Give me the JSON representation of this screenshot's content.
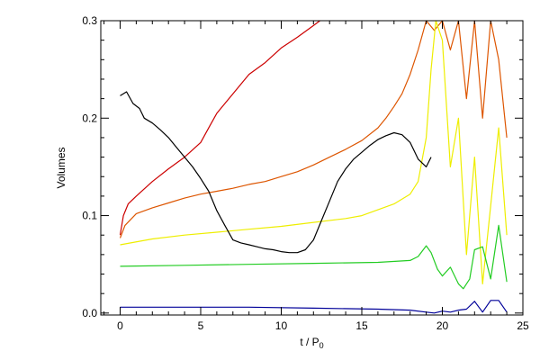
{
  "chart_data": {
    "type": "line",
    "xlabel": "t / P",
    "xlabel_subscript": "0",
    "ylabel": "Volumes",
    "xlim": [
      -1.2,
      25
    ],
    "ylim": [
      -0.002,
      0.3
    ],
    "xticks": [
      {
        "value": 0,
        "label": "0"
      },
      {
        "value": 5,
        "label": "5"
      },
      {
        "value": 10,
        "label": "10"
      },
      {
        "value": 15,
        "label": "15"
      },
      {
        "value": 20,
        "label": "20"
      },
      {
        "value": 25,
        "label": "25"
      }
    ],
    "yticks": [
      {
        "value": 0.0,
        "label": "0.0"
      },
      {
        "value": 0.1,
        "label": "0.1"
      },
      {
        "value": 0.2,
        "label": "0.2"
      },
      {
        "value": 0.3,
        "label": "0.3"
      }
    ],
    "grid": false,
    "legend": "none",
    "series": [
      {
        "color": "#cc0000",
        "x": [
          0,
          0.2,
          0.5,
          1,
          2,
          3,
          4,
          5,
          5.5,
          6,
          7,
          8,
          9,
          10,
          11,
          12,
          12.4
        ],
        "y": [
          0.08,
          0.1,
          0.112,
          0.12,
          0.135,
          0.148,
          0.16,
          0.175,
          0.19,
          0.205,
          0.225,
          0.245,
          0.257,
          0.272,
          0.283,
          0.295,
          0.3
        ]
      },
      {
        "color": "#dd5500",
        "x": [
          0,
          0.3,
          1,
          2,
          3,
          4,
          5,
          6,
          7,
          8,
          9,
          10,
          11,
          12,
          13,
          14,
          15,
          16,
          16.5,
          17,
          17.5,
          18,
          18.5,
          19,
          19.5,
          20,
          20.5,
          21,
          21.5,
          22,
          22.5,
          23,
          23.5,
          24
        ],
        "y": [
          0.077,
          0.09,
          0.102,
          0.108,
          0.113,
          0.118,
          0.122,
          0.125,
          0.128,
          0.132,
          0.135,
          0.14,
          0.145,
          0.152,
          0.16,
          0.168,
          0.177,
          0.19,
          0.2,
          0.212,
          0.225,
          0.245,
          0.27,
          0.3,
          0.29,
          0.3,
          0.27,
          0.3,
          0.22,
          0.3,
          0.2,
          0.3,
          0.26,
          0.18
        ]
      },
      {
        "color": "#eeee00",
        "x": [
          0,
          2,
          4,
          6,
          8,
          10,
          12,
          14,
          15,
          16,
          17,
          18,
          18.5,
          19,
          19.3,
          19.6,
          20,
          20.5,
          21,
          21.5,
          22,
          22.5,
          23,
          23.5,
          24
        ],
        "y": [
          0.07,
          0.076,
          0.08,
          0.083,
          0.086,
          0.089,
          0.093,
          0.097,
          0.1,
          0.106,
          0.112,
          0.122,
          0.135,
          0.18,
          0.25,
          0.3,
          0.28,
          0.15,
          0.2,
          0.06,
          0.16,
          0.03,
          0.11,
          0.19,
          0.08
        ]
      },
      {
        "color": "#22cc22",
        "x": [
          0,
          4,
          8,
          12,
          16,
          18,
          18.5,
          19,
          19.3,
          19.7,
          20,
          20.5,
          21,
          21.3,
          21.7,
          22,
          22.5,
          23,
          23.5,
          24
        ],
        "y": [
          0.048,
          0.049,
          0.05,
          0.051,
          0.052,
          0.054,
          0.058,
          0.069,
          0.062,
          0.045,
          0.038,
          0.047,
          0.03,
          0.025,
          0.035,
          0.065,
          0.068,
          0.035,
          0.09,
          0.032
        ]
      },
      {
        "color": "#000099",
        "x": [
          0,
          4,
          8,
          12,
          16,
          18,
          19,
          19.5,
          20,
          20.5,
          21,
          21.5,
          22,
          22.5,
          23,
          23.5,
          24
        ],
        "y": [
          0.006,
          0.006,
          0.006,
          0.005,
          0.004,
          0.003,
          0.001,
          0.0,
          0.002,
          0.001,
          0.003,
          0.004,
          0.012,
          0.001,
          0.013,
          0.013,
          0.001
        ]
      },
      {
        "color": "#000000",
        "x": [
          0,
          0.4,
          0.8,
          1.2,
          1.5,
          2,
          2.5,
          3,
          3.5,
          4,
          4.5,
          5,
          5.5,
          6,
          6.5,
          7,
          7.5,
          8,
          8.5,
          9,
          9.5,
          10,
          10.5,
          11,
          11.5,
          12,
          12.5,
          13,
          13.5,
          14,
          14.5,
          15,
          15.5,
          16,
          16.5,
          17,
          17.5,
          18,
          18.5,
          19,
          19.3
        ],
        "y": [
          0.223,
          0.227,
          0.215,
          0.21,
          0.2,
          0.195,
          0.188,
          0.18,
          0.17,
          0.16,
          0.15,
          0.138,
          0.125,
          0.105,
          0.09,
          0.075,
          0.072,
          0.07,
          0.068,
          0.066,
          0.065,
          0.063,
          0.062,
          0.062,
          0.065,
          0.075,
          0.095,
          0.115,
          0.135,
          0.148,
          0.158,
          0.165,
          0.172,
          0.178,
          0.182,
          0.185,
          0.183,
          0.175,
          0.158,
          0.15,
          0.16
        ]
      }
    ]
  }
}
